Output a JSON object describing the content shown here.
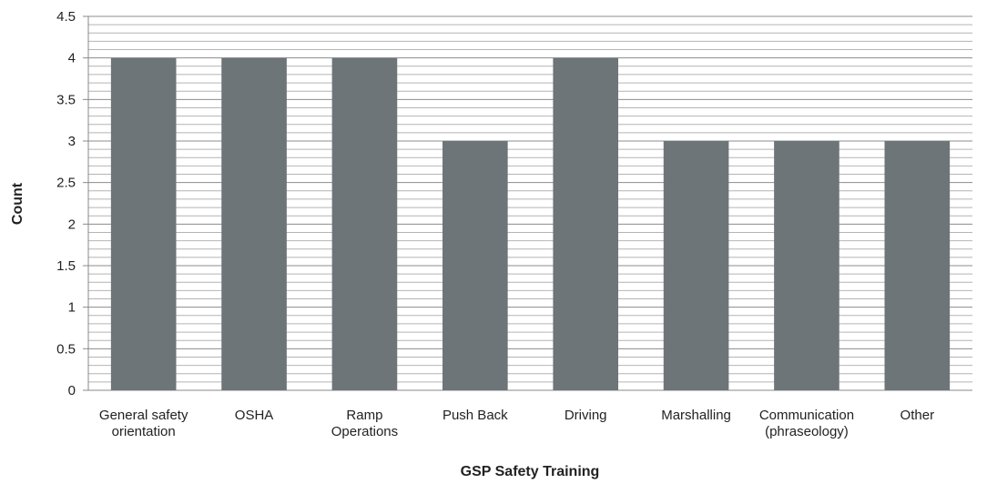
{
  "chart_data": {
    "type": "bar",
    "x_label": "GSP Safety Training",
    "y_label": "Count",
    "categories": [
      "General safety\norientation",
      "OSHA",
      "Ramp\nOperations",
      "Push Back",
      "Driving",
      "Marshalling",
      "Communication\n(phraseology)",
      "Other"
    ],
    "values": [
      4,
      4,
      4,
      3,
      4,
      3,
      3,
      3
    ],
    "color": "#6d7578",
    "ylim": [
      0,
      4.5
    ],
    "yticks": [
      0,
      0.5,
      1,
      1.5,
      2,
      2.5,
      3,
      3.5,
      4,
      4.5
    ],
    "minor_yticks": [
      0.1,
      0.2,
      0.3,
      0.4,
      0.6,
      0.7,
      0.8,
      0.9,
      1.1,
      1.2,
      1.3,
      1.4,
      1.6,
      1.7,
      1.8,
      1.9,
      2.1,
      2.2,
      2.3,
      2.4,
      2.6,
      2.7,
      2.8,
      2.9,
      3.1,
      3.2,
      3.3,
      3.4,
      3.6,
      3.7,
      3.8,
      3.9,
      4.1,
      4.2,
      4.3,
      4.4
    ],
    "grid": true
  }
}
